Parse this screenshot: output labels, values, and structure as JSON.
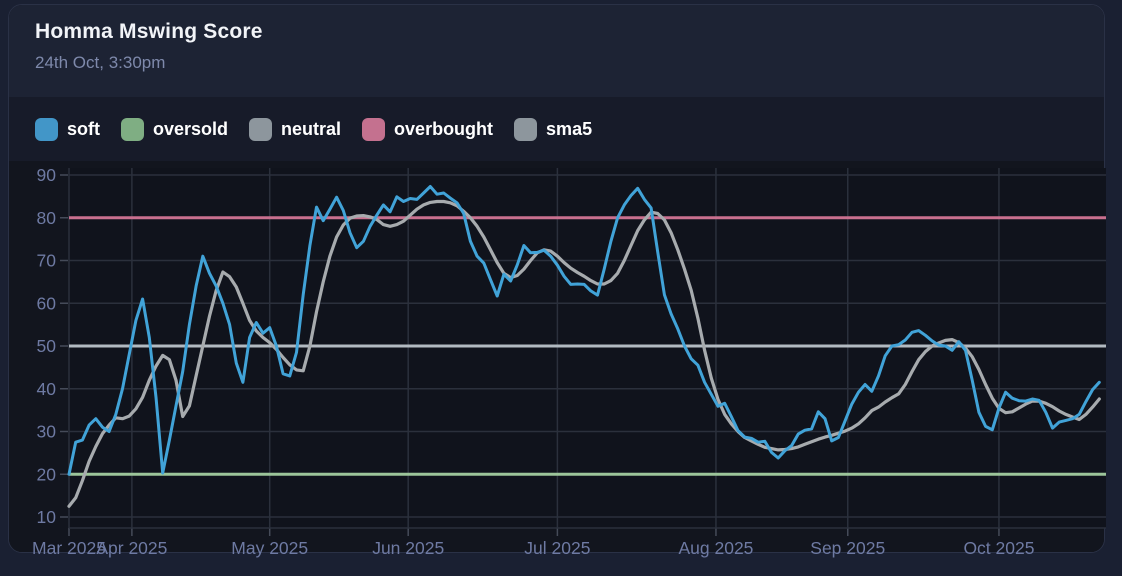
{
  "header": {
    "title": "Homma Mswing Score",
    "timestamp": "24th Oct, 3:30pm"
  },
  "legend": {
    "items": [
      {
        "label": "soft",
        "swatch_color": "#4296c8"
      },
      {
        "label": "oversold",
        "swatch_color": "#7fae83"
      },
      {
        "label": "neutral",
        "swatch_color": "#8d969d"
      },
      {
        "label": "overbought",
        "swatch_color": "#c4718f"
      },
      {
        "label": "sma5",
        "swatch_color": "#8d969d"
      }
    ]
  },
  "colors": {
    "page_background": "#1a2032",
    "card_background": "#12151e",
    "header_background": "#1d2334",
    "legend_background": "#171b29",
    "plot_background": "#10131c",
    "gridline": "#2b303c",
    "axis_tick": "#454b59",
    "axis_label": "#6e7aa3",
    "title_text": "#f2f4f8",
    "subtitle_text": "#7e89ab"
  },
  "chart_data": {
    "type": "line",
    "title": "Homma Mswing Score",
    "x_axis": {
      "kind": "time (daily points, mid-Mar to 24 Oct 2025)",
      "range": [
        0,
        155
      ],
      "ticks": [
        {
          "label": "Mar 2025",
          "pos": 0
        },
        {
          "label": "Apr 2025",
          "pos": 9.4
        },
        {
          "label": "May 2025",
          "pos": 30
        },
        {
          "label": "Jun 2025",
          "pos": 50.7
        },
        {
          "label": "Jul 2025",
          "pos": 73
        },
        {
          "label": "Aug 2025",
          "pos": 96.7
        },
        {
          "label": "Sep 2025",
          "pos": 116.4
        },
        {
          "label": "Oct 2025",
          "pos": 139
        }
      ]
    },
    "y_axis": {
      "ticks": [
        10,
        20,
        30,
        40,
        50,
        60,
        70,
        80,
        90
      ],
      "ylim": [
        7,
        91.5
      ],
      "grid": true
    },
    "thresholds": [
      {
        "name": "overbought",
        "value": 80,
        "color": "#c9708f"
      },
      {
        "name": "neutral",
        "value": 50,
        "color": "#b2bac1"
      },
      {
        "name": "oversold",
        "value": 20,
        "color": "#9cc59a"
      }
    ],
    "series": [
      {
        "name": "soft",
        "color": "#41a3d8",
        "width": 3,
        "values": [
          20,
          27.5,
          28,
          31.5,
          33,
          31,
          30,
          34,
          40,
          48,
          56,
          61,
          52,
          38,
          20.3,
          28,
          36,
          44,
          55,
          64,
          71,
          67,
          64,
          60,
          55,
          46,
          41.5,
          52,
          55.5,
          53,
          54.3,
          50,
          43.5,
          43,
          48.5,
          62,
          73.5,
          82.5,
          79.3,
          82,
          84.8,
          81.7,
          76.5,
          73,
          74.5,
          78,
          80.6,
          83,
          81.4,
          84.9,
          83.8,
          84.5,
          84.3,
          85.8,
          87.3,
          85.5,
          85.8,
          84.6,
          83.5,
          81,
          74.5,
          71,
          69.4,
          65.5,
          61.7,
          66.8,
          65.2,
          69,
          73.5,
          71.8,
          71.9,
          72.4,
          71,
          68.9,
          66.3,
          64.4,
          64.5,
          64.4,
          62.9,
          61.9,
          68,
          74.5,
          80,
          83,
          85.2,
          86.9,
          84.3,
          82.3,
          72,
          62,
          57.5,
          54,
          50,
          47,
          45.5,
          41.5,
          38.7,
          35.9,
          36.6,
          33.5,
          30.2,
          28.7,
          28.4,
          27.5,
          27.7,
          25.1,
          23.8,
          25.5,
          26.7,
          29.4,
          30.3,
          30.6,
          34.6,
          33,
          27.8,
          28.6,
          32.5,
          36.4,
          39.2,
          41,
          39.4,
          43,
          47.7,
          50,
          50.3,
          51.4,
          53.2,
          53.6,
          52.5,
          51.2,
          50.2,
          50,
          49,
          51,
          49,
          42,
          34.5,
          31.2,
          30.4,
          35.5,
          39.2,
          37.8,
          37.2,
          37.1,
          37.6,
          37.3,
          34.5,
          30.8,
          32.2,
          32.6,
          33,
          34,
          37,
          39.8,
          41.5
        ]
      },
      {
        "name": "sma5",
        "color": "#a7abae",
        "width": 3.2,
        "values": [
          12.5,
          14.5,
          18.5,
          23,
          26.5,
          29.5,
          31.5,
          33.2,
          33,
          33.6,
          35.3,
          38,
          42,
          45.3,
          47.8,
          46.8,
          42,
          33.5,
          36,
          43,
          50,
          57,
          63,
          67.3,
          66.2,
          63.8,
          60,
          56,
          53.5,
          52,
          50.8,
          49.2,
          47.3,
          45.6,
          44.4,
          44.2,
          50,
          58,
          65,
          71,
          75.5,
          78.3,
          79.9,
          80.4,
          80.5,
          80.2,
          79.6,
          78.4,
          78,
          78.4,
          79.2,
          80.6,
          82,
          83,
          83.6,
          83.8,
          83.8,
          83.5,
          82.8,
          81.5,
          80,
          78,
          75.5,
          72.5,
          69.5,
          67,
          66,
          66.5,
          68,
          70,
          71.8,
          72.5,
          72.2,
          71,
          69.5,
          68.2,
          67.2,
          66.3,
          65.3,
          64.5,
          64.5,
          65.3,
          67,
          70,
          73.5,
          77,
          79.5,
          81.3,
          81,
          79.5,
          76.5,
          72.5,
          68,
          63,
          56.5,
          49,
          42.5,
          37.5,
          34,
          31.8,
          30,
          28.6,
          27.8,
          27,
          26.3,
          26,
          25.7,
          25.8,
          26,
          26.4,
          27,
          27.6,
          28.2,
          28.7,
          29.1,
          29.6,
          30.1,
          30.8,
          31.8,
          33.2,
          34.9,
          35.7,
          36.9,
          37.9,
          38.8,
          41,
          44,
          46.8,
          48.7,
          50,
          50.7,
          51.3,
          51.5,
          50.8,
          49.5,
          47.5,
          44.5,
          41,
          37.8,
          35.4,
          34.4,
          34.6,
          35.5,
          36.4,
          37.1,
          37.1,
          36.6,
          35.8,
          34.8,
          34,
          33.4,
          32.8,
          34,
          35.7,
          37.6
        ]
      }
    ],
    "legend_position": "top-left"
  }
}
